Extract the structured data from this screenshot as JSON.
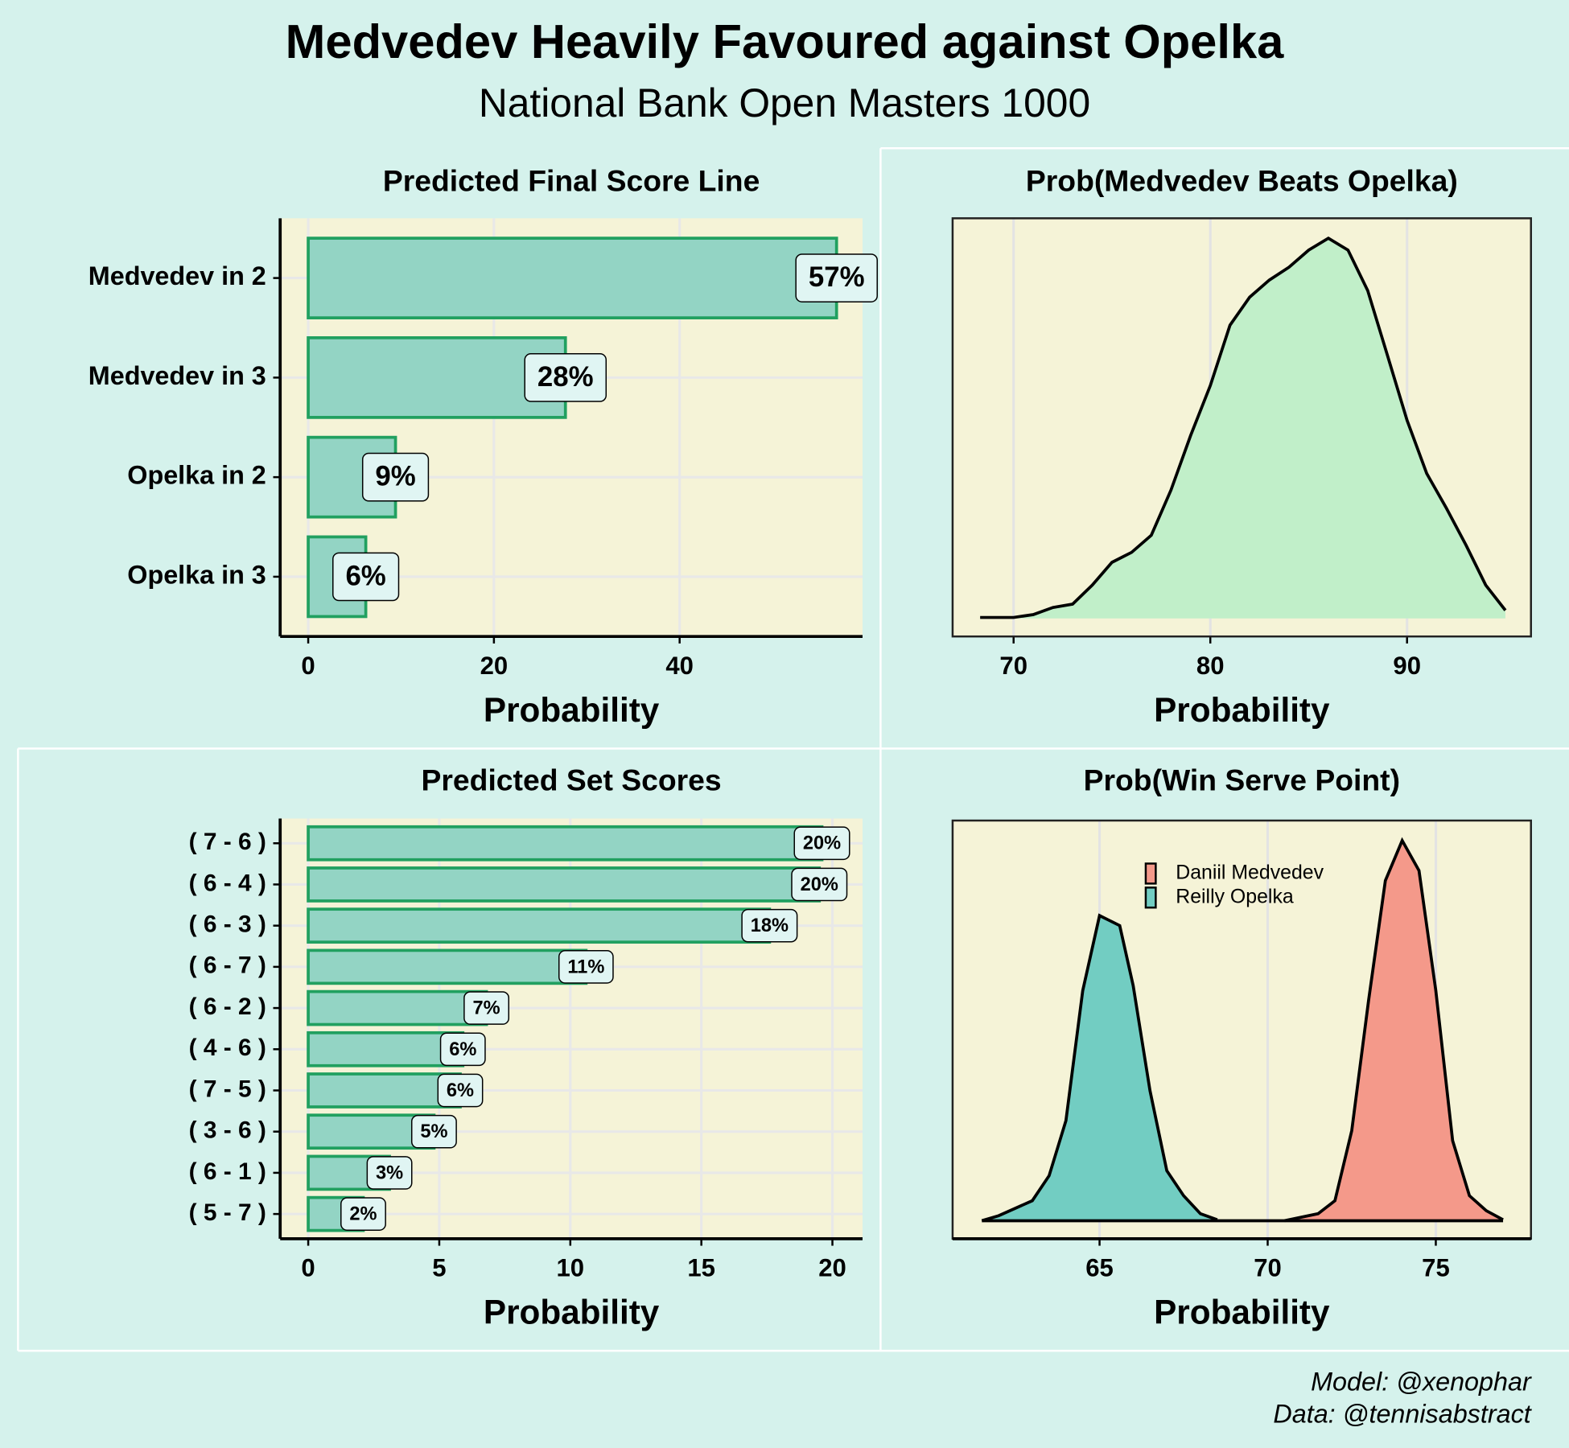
{
  "title": "Medvedev Heavily Favoured against Opelka",
  "subtitle": "National Bank Open Masters 1000",
  "credits": [
    "Model: @xenophar",
    "Data: @tennisabstract"
  ],
  "chart_data": [
    {
      "type": "bar",
      "orientation": "horizontal",
      "title": "Predicted Final Score Line",
      "x_label": "Probability",
      "categories": [
        "Medvedev in 2",
        "Medvedev in 3",
        "Opelka in 2",
        "Opelka in 3"
      ],
      "values": [
        56.9,
        27.7,
        9.4,
        6.2
      ],
      "value_labels": [
        "57%",
        "28%",
        "9%",
        "6%"
      ],
      "color": "#93d4c4",
      "edge_color": "#21a060",
      "xlim": [
        -3.02,
        59.7
      ],
      "xticks": [
        0,
        20,
        40
      ],
      "grid": true
    },
    {
      "type": "area",
      "title": "Prob(Medvedev Beats Opelka)",
      "x_label": "Probability",
      "x": [
        68.3,
        70,
        71,
        72,
        73,
        74,
        75,
        76,
        77,
        78,
        79,
        80,
        81,
        82,
        83,
        84,
        85,
        86,
        87,
        88,
        89,
        90,
        91,
        92,
        93,
        94,
        95
      ],
      "values": [
        0.0002,
        0.0002,
        0.0008,
        0.0023,
        0.003,
        0.007,
        0.0118,
        0.0139,
        0.0175,
        0.027,
        0.0385,
        0.049,
        0.0617,
        0.0676,
        0.0712,
        0.0739,
        0.0775,
        0.08,
        0.0775,
        0.069,
        0.0554,
        0.0417,
        0.0305,
        0.0232,
        0.0154,
        0.007,
        0.0017
      ],
      "color": "#c1efc9",
      "xlim": [
        66.9,
        96.3
      ],
      "xticks": [
        70,
        80,
        90
      ],
      "ylim": [
        -0.0038,
        0.0842
      ],
      "grid": true
    },
    {
      "type": "bar",
      "orientation": "horizontal",
      "title": "Predicted Set Scores",
      "x_label": "Probability",
      "categories": [
        "( 7 - 6 )",
        "( 6 - 4 )",
        "( 6 - 3 )",
        "( 6 - 7 )",
        "( 6 - 2 )",
        "( 4 - 6 )",
        "( 7 - 5 )",
        "( 3 - 6 )",
        "( 6 - 1 )",
        "( 5 - 7 )"
      ],
      "values": [
        19.6,
        19.5,
        17.6,
        10.6,
        6.8,
        5.9,
        5.8,
        4.8,
        3.1,
        2.1
      ],
      "value_labels": [
        "20%",
        "20%",
        "18%",
        "11%",
        "7%",
        "6%",
        "6%",
        "5%",
        "3%",
        "2%"
      ],
      "color": "#93d4c4",
      "edge_color": "#21a060",
      "xlim": [
        -1.07,
        21.15
      ],
      "xticks": [
        0,
        5,
        10,
        15,
        20
      ],
      "grid": true
    },
    {
      "type": "area",
      "title": "Prob(Win Serve Point)",
      "x_label": "Probability",
      "series": [
        {
          "name": "Daniil Medvedev",
          "color": "#f4998a",
          "x": [
            70.5,
            71.5,
            72,
            72.5,
            73,
            73.5,
            74,
            74.5,
            75,
            75.5,
            76,
            76.5,
            77
          ],
          "values": [
            0,
            0.007,
            0.02,
            0.09,
            0.22,
            0.34,
            0.38,
            0.35,
            0.23,
            0.08,
            0.025,
            0.01,
            0.001
          ]
        },
        {
          "name": "Reilly Opelka",
          "color": "#72cdc2",
          "x": [
            61.5,
            62,
            63,
            63.5,
            64,
            64.5,
            65,
            65.3,
            65.6,
            66,
            66.5,
            67,
            67.5,
            68,
            68.5
          ],
          "values": [
            0,
            0.005,
            0.02,
            0.045,
            0.1,
            0.23,
            0.305,
            0.3,
            0.295,
            0.235,
            0.13,
            0.05,
            0.025,
            0.007,
            0.001
          ]
        }
      ],
      "xlim": [
        60.63,
        77.83
      ],
      "xticks": [
        65,
        70,
        75
      ],
      "ylim": [
        -0.018,
        0.4
      ],
      "legend": "top",
      "grid": true
    }
  ]
}
